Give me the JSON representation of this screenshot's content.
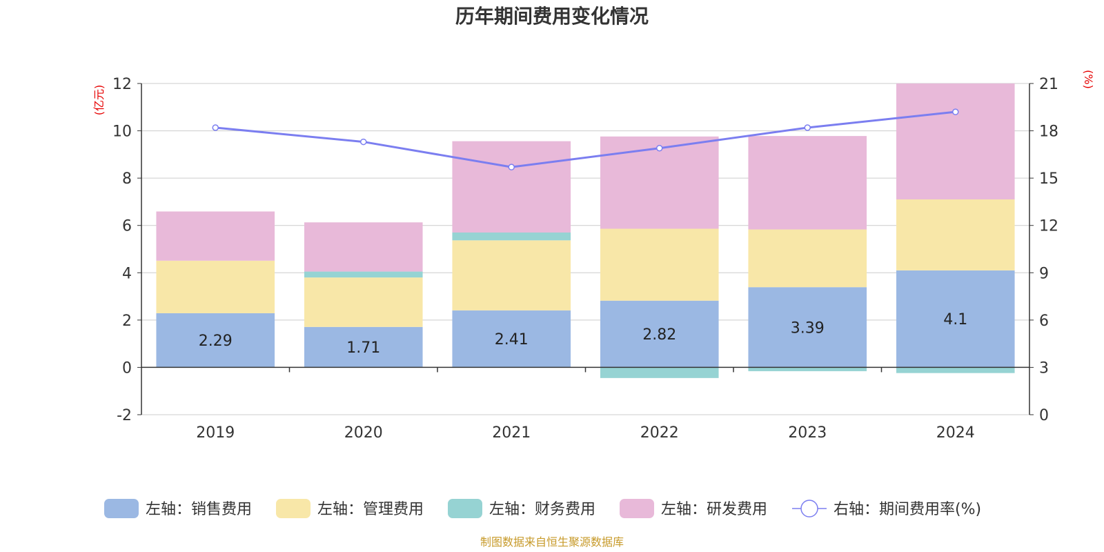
{
  "chart_data": {
    "type": "bar",
    "title": "历年期间费用变化情况",
    "categories": [
      "2019",
      "2020",
      "2021",
      "2022",
      "2023",
      "2024"
    ],
    "left_axis": {
      "unit": "(亿元)",
      "ylim": [
        -2,
        12
      ],
      "ticks": [
        -2,
        0,
        2,
        4,
        6,
        8,
        10,
        12
      ]
    },
    "right_axis": {
      "unit": "(%)",
      "ylim": [
        0,
        21
      ],
      "ticks": [
        0,
        3,
        6,
        9,
        12,
        15,
        18,
        21
      ]
    },
    "series": [
      {
        "name": "左轴：销售费用",
        "color": "#9bb8e3",
        "values": [
          2.29,
          1.71,
          2.41,
          2.82,
          3.39,
          4.1
        ],
        "labels": [
          "2.29",
          "1.71",
          "2.41",
          "2.82",
          "3.39",
          "4.1"
        ]
      },
      {
        "name": "左轴：管理费用",
        "color": "#f8e7a8",
        "values": [
          2.22,
          2.09,
          2.96,
          3.04,
          2.44,
          3.0
        ]
      },
      {
        "name": "左轴：财务费用",
        "color": "#96d3d3",
        "values": [
          0.0,
          0.25,
          0.33,
          -0.45,
          -0.16,
          -0.24
        ]
      },
      {
        "name": "左轴：研发费用",
        "color": "#e8b9d9",
        "values": [
          2.08,
          2.08,
          3.86,
          3.9,
          3.95,
          4.9
        ]
      }
    ],
    "line": {
      "name": "右轴：期间费用率(%)",
      "color": "#7b7ef0",
      "values": [
        18.2,
        17.3,
        15.7,
        16.9,
        18.2,
        19.2
      ]
    },
    "grid": true,
    "legend_position": "bottom"
  },
  "source": "制图数据来自恒生聚源数据库"
}
